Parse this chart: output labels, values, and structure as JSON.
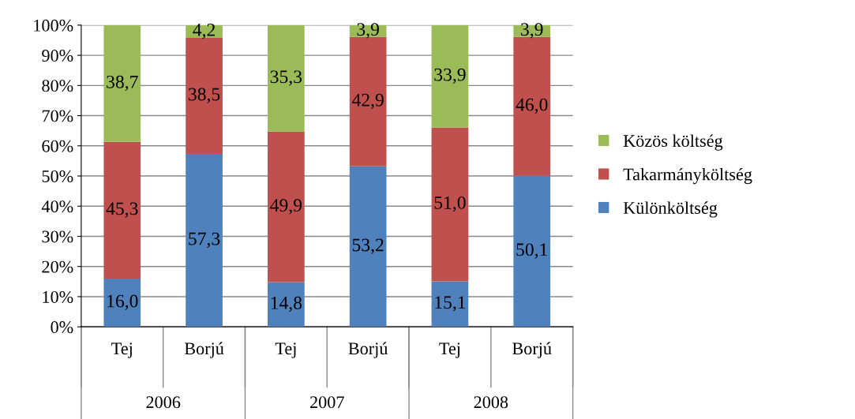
{
  "chart_data": {
    "type": "bar",
    "stacked": true,
    "categories": [
      "Tej",
      "Borjú",
      "Tej",
      "Borjú",
      "Tej",
      "Borjú"
    ],
    "series": [
      {
        "name": "Különköltség",
        "color": "#4f81bd",
        "values": [
          16.0,
          57.3,
          14.8,
          53.2,
          15.1,
          50.1
        ],
        "value_labels": [
          "16,0",
          "57,3",
          "14,8",
          "53,2",
          "15,1",
          "50,1"
        ]
      },
      {
        "name": "Takarmányköltség",
        "color": "#c0504d",
        "values": [
          45.3,
          38.5,
          49.9,
          42.9,
          51.0,
          46.0
        ],
        "value_labels": [
          "45,3",
          "38,5",
          "49,9",
          "42,9",
          "51,0",
          "46,0"
        ]
      },
      {
        "name": "Közös költség",
        "color": "#9bbb59",
        "values": [
          38.7,
          4.2,
          35.3,
          3.9,
          33.9,
          3.9
        ],
        "value_labels": [
          "38,7",
          "4,2",
          "35,3",
          "3,9",
          "33,9",
          "3,9"
        ]
      }
    ],
    "annotations": [
      "2006",
      "2007",
      "2008"
    ],
    "ylim": [
      0,
      100
    ],
    "yticks": [
      {
        "value": 0,
        "label": "0%"
      },
      {
        "value": 10,
        "label": "10%"
      },
      {
        "value": 20,
        "label": "20%"
      },
      {
        "value": 30,
        "label": "30%"
      },
      {
        "value": 40,
        "label": "40%"
      },
      {
        "value": 50,
        "label": "50%"
      },
      {
        "value": 60,
        "label": "60%"
      },
      {
        "value": 70,
        "label": "70%"
      },
      {
        "value": 80,
        "label": "80%"
      },
      {
        "value": 90,
        "label": "90%"
      },
      {
        "value": 100,
        "label": "100%"
      }
    ],
    "grid": "y",
    "legend": "right"
  }
}
